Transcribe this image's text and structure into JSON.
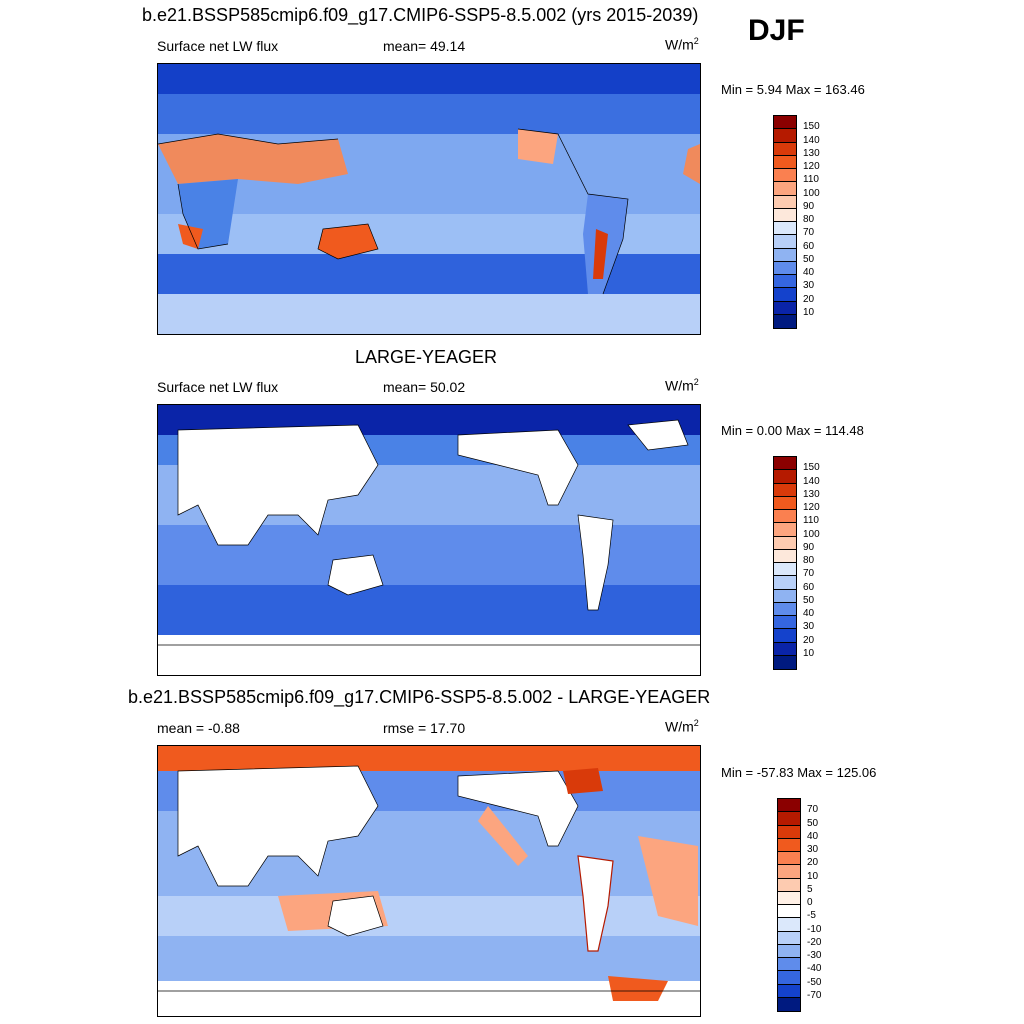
{
  "season": "DJF",
  "panels": [
    {
      "title": "b.e21.BSSP585cmip6.f09_g17.CMIP6-SSP5-8.5.002 (yrs 2015-2039)",
      "left_label": "Surface net LW flux",
      "center_label": "mean=  49.14",
      "units": "W/m",
      "units_sup": "2",
      "minmax": "Min =   5.94 Max = 163.46",
      "colorbar": {
        "labels": [
          "150",
          "140",
          "130",
          "120",
          "110",
          "100",
          "90",
          "80",
          "70",
          "60",
          "50",
          "40",
          "30",
          "20",
          "10"
        ],
        "colors": [
          "#8b0000",
          "#b51a00",
          "#d93a0a",
          "#f05a1e",
          "#fa8050",
          "#fca57f",
          "#fdcbb0",
          "#fde8db",
          "#dbe8fb",
          "#b8d0f8",
          "#8fb3f2",
          "#5f8ceb",
          "#3566e0",
          "#1442cc",
          "#0a24a8",
          "#001a80"
        ]
      }
    },
    {
      "title": "LARGE-YEAGER",
      "left_label": "Surface net LW flux",
      "center_label": "mean=  50.02",
      "units": "W/m",
      "units_sup": "2",
      "minmax": "Min =   0.00 Max = 114.48",
      "colorbar": {
        "labels": [
          "150",
          "140",
          "130",
          "120",
          "110",
          "100",
          "90",
          "80",
          "70",
          "60",
          "50",
          "40",
          "30",
          "20",
          "10"
        ],
        "colors": [
          "#8b0000",
          "#b51a00",
          "#d93a0a",
          "#f05a1e",
          "#fa8050",
          "#fca57f",
          "#fdcbb0",
          "#fde8db",
          "#dbe8fb",
          "#b8d0f8",
          "#8fb3f2",
          "#5f8ceb",
          "#3566e0",
          "#1442cc",
          "#0a24a8",
          "#001a80"
        ]
      }
    },
    {
      "title": "b.e21.BSSP585cmip6.f09_g17.CMIP6-SSP5-8.5.002 - LARGE-YEAGER",
      "left_label": "mean =  -0.88",
      "center_label": "rmse =  17.70",
      "units": "W/m",
      "units_sup": "2",
      "minmax": "Min = -57.83 Max = 125.06",
      "colorbar": {
        "labels": [
          "70",
          "50",
          "40",
          "30",
          "20",
          "10",
          "5",
          "0",
          "-5",
          "-10",
          "-20",
          "-30",
          "-40",
          "-50",
          "-70"
        ],
        "colors": [
          "#8b0000",
          "#b51a00",
          "#d93a0a",
          "#f05a1e",
          "#fa8050",
          "#fca57f",
          "#fdcbb0",
          "#fff0e6",
          "#ffffff",
          "#dbe8fb",
          "#b8d0f8",
          "#8fb3f2",
          "#5f8ceb",
          "#3566e0",
          "#1442cc",
          "#001a80"
        ]
      }
    }
  ]
}
